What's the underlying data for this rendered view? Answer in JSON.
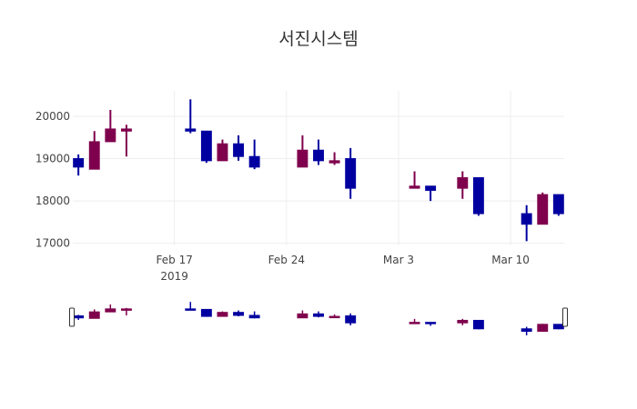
{
  "chart_data": {
    "type": "candlestick",
    "title": "서진시스템",
    "xlabel": "",
    "ylabel": "",
    "x_range": [
      "2019-02-11",
      "2019-03-12"
    ],
    "ylim": [
      16950,
      20600
    ],
    "grid": true,
    "legend": "none",
    "rangeslider": true,
    "colors": {
      "increasing": "#7f004d",
      "decreasing": "#0000a0"
    },
    "y_ticks": [
      {
        "value": 17000,
        "label": "17000"
      },
      {
        "value": 18000,
        "label": "18000"
      },
      {
        "value": 19000,
        "label": "19000"
      },
      {
        "value": 20000,
        "label": "20000"
      }
    ],
    "x_ticks": [
      {
        "date": "2019-02-17",
        "label": "Feb 17",
        "sublabel": "2019"
      },
      {
        "date": "2019-02-24",
        "label": "Feb 24",
        "sublabel": ""
      },
      {
        "date": "2019-03-03",
        "label": "Mar 3",
        "sublabel": ""
      },
      {
        "date": "2019-03-10",
        "label": "Mar 10",
        "sublabel": ""
      }
    ],
    "candles": [
      {
        "date": "2019-02-11",
        "open": 19000,
        "high": 19100,
        "low": 18600,
        "close": 18800
      },
      {
        "date": "2019-02-12",
        "open": 18750,
        "high": 19650,
        "low": 18750,
        "close": 19400
      },
      {
        "date": "2019-02-13",
        "open": 19400,
        "high": 20150,
        "low": 19400,
        "close": 19700
      },
      {
        "date": "2019-02-14",
        "open": 19650,
        "high": 19800,
        "low": 19050,
        "close": 19700
      },
      {
        "date": "2019-02-18",
        "open": 19700,
        "high": 20400,
        "low": 19600,
        "close": 19650
      },
      {
        "date": "2019-02-19",
        "open": 19650,
        "high": 19650,
        "low": 18900,
        "close": 18950
      },
      {
        "date": "2019-02-20",
        "open": 18950,
        "high": 19450,
        "low": 18950,
        "close": 19350
      },
      {
        "date": "2019-02-21",
        "open": 19350,
        "high": 19550,
        "low": 18950,
        "close": 19050
      },
      {
        "date": "2019-02-22",
        "open": 19050,
        "high": 19450,
        "low": 18750,
        "close": 18800
      },
      {
        "date": "2019-02-25",
        "open": 18800,
        "high": 19550,
        "low": 18800,
        "close": 19200
      },
      {
        "date": "2019-02-26",
        "open": 19200,
        "high": 19450,
        "low": 18850,
        "close": 18950
      },
      {
        "date": "2019-02-27",
        "open": 18900,
        "high": 19150,
        "low": 18850,
        "close": 18950
      },
      {
        "date": "2019-02-28",
        "open": 19000,
        "high": 19250,
        "low": 18050,
        "close": 18300
      },
      {
        "date": "2019-03-04",
        "open": 18300,
        "high": 18700,
        "low": 18300,
        "close": 18350
      },
      {
        "date": "2019-03-05",
        "open": 18350,
        "high": 18350,
        "low": 18000,
        "close": 18250
      },
      {
        "date": "2019-03-07",
        "open": 18300,
        "high": 18700,
        "low": 18050,
        "close": 18550
      },
      {
        "date": "2019-03-08",
        "open": 18550,
        "high": 18550,
        "low": 17650,
        "close": 17700
      },
      {
        "date": "2019-03-11",
        "open": 17700,
        "high": 17900,
        "low": 17050,
        "close": 17450
      },
      {
        "date": "2019-03-12",
        "open": 17450,
        "high": 18200,
        "low": 17450,
        "close": 18150
      },
      {
        "date": "2019-03-13",
        "open": 18150,
        "high": 18150,
        "low": 17650,
        "close": 17700
      }
    ]
  }
}
